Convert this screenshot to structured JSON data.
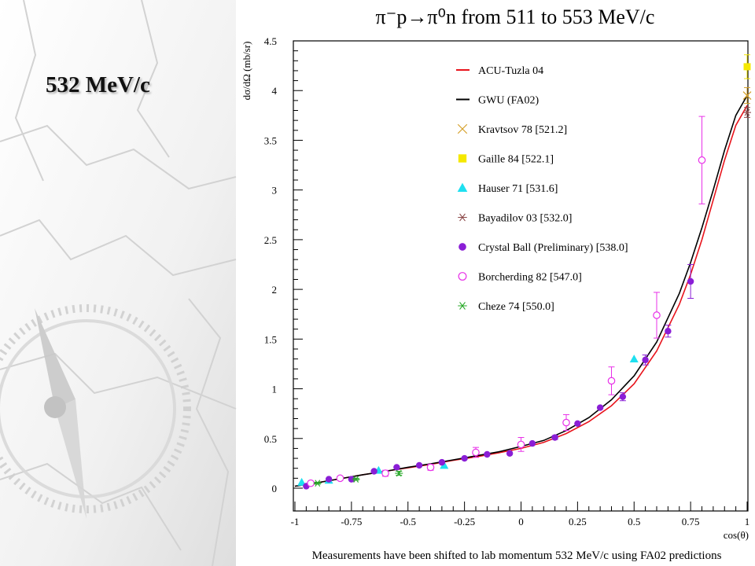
{
  "slide": {
    "title": "532 MeV/c"
  },
  "chart_data": {
    "type": "scatter",
    "title": "π⁻p→π⁰n from 511 to 553 MeV/c",
    "xlabel": "cos(θ)",
    "ylabel": "dσ/dΩ (mb/sr)",
    "xlim": [
      -1,
      1
    ],
    "ylim": [
      0,
      4.5
    ],
    "xticks": [
      {
        "v": -1,
        "label": "-1"
      },
      {
        "v": -0.75,
        "label": "-0.75"
      },
      {
        "v": -0.5,
        "label": "-0.5"
      },
      {
        "v": -0.25,
        "label": "-0.25"
      },
      {
        "v": 0,
        "label": "0"
      },
      {
        "v": 0.25,
        "label": "0.25"
      },
      {
        "v": 0.5,
        "label": "0.5"
      },
      {
        "v": 0.75,
        "label": "0.75"
      },
      {
        "v": 1,
        "label": "1"
      }
    ],
    "yticks": [
      {
        "v": 0,
        "label": "0"
      },
      {
        "v": 0.5,
        "label": "0.5"
      },
      {
        "v": 1,
        "label": "1"
      },
      {
        "v": 1.5,
        "label": "1.5"
      },
      {
        "v": 2,
        "label": "2"
      },
      {
        "v": 2.5,
        "label": "2.5"
      },
      {
        "v": 3,
        "label": "3"
      },
      {
        "v": 3.5,
        "label": "3.5"
      },
      {
        "v": 4,
        "label": "4"
      },
      {
        "v": 4.5,
        "label": "4.5"
      }
    ],
    "grid": false,
    "legend_position": "top-center",
    "footnote": "Measurements have been shifted to lab momentum 532 MeV/c using FA02 predictions",
    "series": [
      {
        "name": "ACU-Tuzla 04",
        "kind": "curve",
        "color": "#e8141c",
        "x": [
          -1,
          -0.9,
          -0.8,
          -0.7,
          -0.6,
          -0.5,
          -0.4,
          -0.3,
          -0.2,
          -0.1,
          0,
          0.1,
          0.2,
          0.3,
          0.4,
          0.5,
          0.6,
          0.7,
          0.75,
          0.8,
          0.85,
          0.9,
          0.95,
          1
        ],
        "y": [
          0.02,
          0.055,
          0.095,
          0.135,
          0.17,
          0.205,
          0.24,
          0.28,
          0.315,
          0.355,
          0.4,
          0.46,
          0.55,
          0.67,
          0.83,
          1.05,
          1.38,
          1.85,
          2.15,
          2.5,
          2.9,
          3.3,
          3.65,
          3.85
        ]
      },
      {
        "name": "GWU (FA02)",
        "kind": "curve",
        "color": "#000000",
        "x": [
          -1,
          -0.9,
          -0.8,
          -0.7,
          -0.6,
          -0.5,
          -0.4,
          -0.3,
          -0.2,
          -0.1,
          0,
          0.1,
          0.2,
          0.3,
          0.4,
          0.5,
          0.6,
          0.7,
          0.75,
          0.8,
          0.85,
          0.9,
          0.95,
          1
        ],
        "y": [
          0.02,
          0.055,
          0.095,
          0.135,
          0.17,
          0.21,
          0.245,
          0.285,
          0.325,
          0.365,
          0.42,
          0.48,
          0.58,
          0.71,
          0.89,
          1.13,
          1.47,
          1.96,
          2.27,
          2.62,
          3.0,
          3.4,
          3.75,
          3.95
        ]
      },
      {
        "name": "Kravtsov 78  [521.2]",
        "kind": "x-mark",
        "color": "#d4a028",
        "x": [
          1.0
        ],
        "y": [
          3.95
        ],
        "err": [
          0.08
        ]
      },
      {
        "name": "Gaille 84  [522.1]",
        "kind": "square",
        "color": "#f5e800",
        "x": [
          1.0
        ],
        "y": [
          4.24
        ],
        "err": [
          0.12
        ]
      },
      {
        "name": "Hauser 71  [531.6]",
        "kind": "triangle",
        "color": "#1ee0f0",
        "x": [
          -0.97,
          -0.85,
          -0.63,
          -0.34,
          0.5
        ],
        "y": [
          0.06,
          0.08,
          0.18,
          0.23,
          1.3
        ],
        "err": [
          0,
          0,
          0,
          0,
          0
        ]
      },
      {
        "name": "Bayadilov 03  [532.0]",
        "kind": "asterisk",
        "color": "#8c4a4a",
        "x": [
          1.0
        ],
        "y": [
          3.78
        ],
        "err": [
          0.05
        ]
      },
      {
        "name": "Crystal Ball (Preliminary)  [538.0]",
        "kind": "filled-circle",
        "color": "#8a1ed6",
        "x": [
          -0.95,
          -0.85,
          -0.75,
          -0.65,
          -0.55,
          -0.45,
          -0.35,
          -0.25,
          -0.15,
          -0.05,
          0.05,
          0.15,
          0.25,
          0.35,
          0.45,
          0.55,
          0.65,
          0.75
        ],
        "y": [
          0.02,
          0.09,
          0.09,
          0.17,
          0.21,
          0.23,
          0.26,
          0.3,
          0.34,
          0.35,
          0.45,
          0.51,
          0.65,
          0.81,
          0.92,
          1.29,
          1.58,
          2.08
        ],
        "err": [
          0,
          0,
          0,
          0,
          0,
          0,
          0,
          0,
          0,
          0,
          0,
          0.02,
          0,
          0,
          0.04,
          0.05,
          0.06,
          0.17
        ]
      },
      {
        "name": "Borcherding 82  [547.0]",
        "kind": "open-circle",
        "color": "#e830e8",
        "x": [
          -0.93,
          -0.8,
          -0.6,
          -0.4,
          -0.2,
          0.0,
          0.2,
          0.4,
          0.6,
          0.8
        ],
        "y": [
          0.05,
          0.1,
          0.15,
          0.21,
          0.36,
          0.44,
          0.66,
          1.08,
          1.74,
          3.3
        ],
        "err": [
          0.01,
          0.02,
          0.03,
          0.03,
          0.05,
          0.07,
          0.08,
          0.14,
          0.23,
          0.44
        ]
      },
      {
        "name": "Cheze 74  [550.0]",
        "kind": "asterisk",
        "color": "#28a828",
        "x": [
          -0.9,
          -0.73,
          -0.54
        ],
        "y": [
          0.05,
          0.09,
          0.15
        ],
        "err": [
          0.01,
          0.01,
          0.02
        ]
      }
    ]
  }
}
